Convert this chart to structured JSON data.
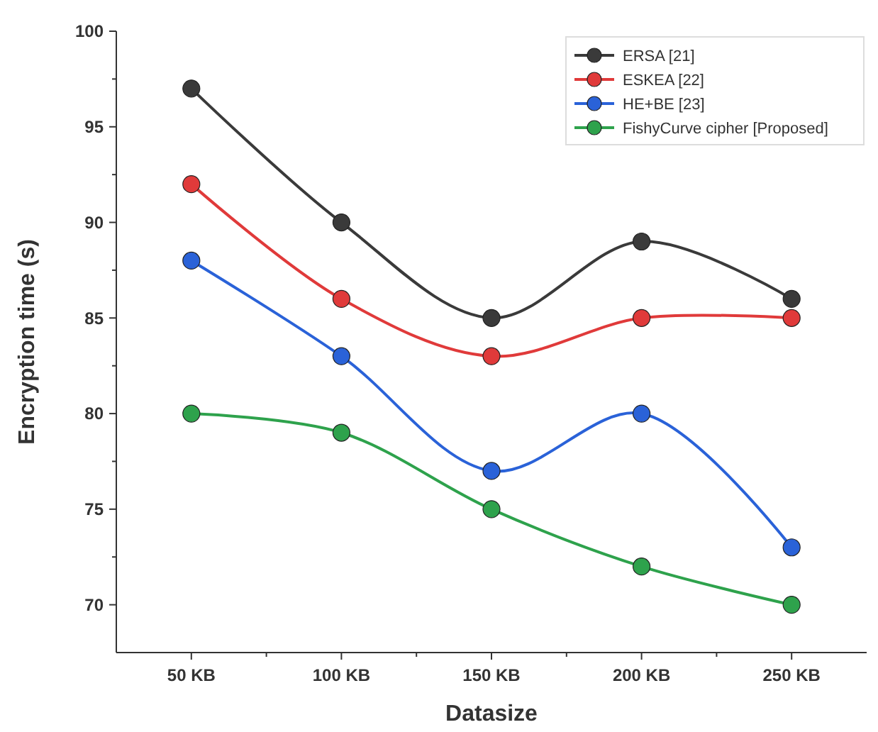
{
  "chart_data": {
    "type": "line",
    "xlabel": "Datasize",
    "ylabel": "Encryption time (s)",
    "categories": [
      "50 KB",
      "100 KB",
      "150 KB",
      "200 KB",
      "250 KB"
    ],
    "series": [
      {
        "name": "ERSA [21]",
        "color": "#3a3a3a",
        "values": [
          97,
          90,
          85,
          89,
          86
        ]
      },
      {
        "name": "ESKEA [22]",
        "color": "#e03a3a",
        "values": [
          92,
          86,
          83,
          85,
          85
        ]
      },
      {
        "name": "HE+BE [23]",
        "color": "#2a62d8",
        "values": [
          88,
          83,
          77,
          80,
          73
        ]
      },
      {
        "name": "FishyCurve cipher [Proposed]",
        "color": "#2ea24c",
        "values": [
          80,
          79,
          75,
          72,
          70
        ]
      }
    ],
    "ylim": [
      67.5,
      100
    ],
    "yticks": [
      70,
      75,
      80,
      85,
      90,
      95,
      100
    ],
    "grid": false,
    "legend": "top right",
    "marker": "circle",
    "line_style": "solid"
  }
}
